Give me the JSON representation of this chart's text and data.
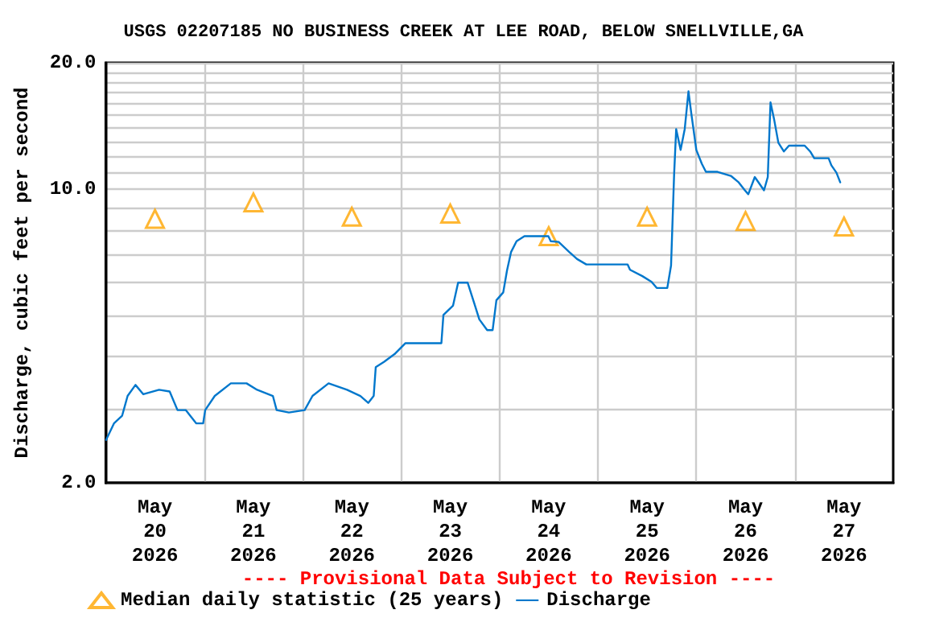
{
  "chart_data": {
    "type": "line",
    "title": "USGS 02207185 NO BUSINESS CREEK AT LEE ROAD, BELOW SNELLVILLE,GA",
    "ylabel": "Discharge, cubic feet per second",
    "annotations": [
      "---- Provisional Data Subject to Revision ----"
    ],
    "log": "y",
    "grid": true,
    "legend": "bottom",
    "xlim": [
      "2026-05-20T00:00",
      "2026-05-28T00:00"
    ],
    "xticks": [
      {
        "value": "2026-05-20T12:00",
        "label": "May\n20\n2026"
      },
      {
        "value": "2026-05-21T00:00",
        "label": null
      },
      {
        "value": "2026-05-21T12:00",
        "label": "May\n21\n2026"
      },
      {
        "value": "2026-05-22T00:00",
        "label": null
      },
      {
        "value": "2026-05-22T12:00",
        "label": "May\n22\n2026"
      },
      {
        "value": "2026-05-23T00:00",
        "label": null
      },
      {
        "value": "2026-05-23T12:00",
        "label": "May\n23\n2026"
      },
      {
        "value": "2026-05-24T00:00",
        "label": null
      },
      {
        "value": "2026-05-24T12:00",
        "label": "May\n24\n2026"
      },
      {
        "value": "2026-05-25T00:00",
        "label": null
      },
      {
        "value": "2026-05-25T12:00",
        "label": "May\n25\n2026"
      },
      {
        "value": "2026-05-26T00:00",
        "label": null
      },
      {
        "value": "2026-05-26T12:00",
        "label": "May\n26\n2026"
      },
      {
        "value": "2026-05-27T00:00",
        "label": null
      },
      {
        "value": "2026-05-27T12:00",
        "label": "May\n27\n2026"
      }
    ],
    "ylim": [
      2,
      20
    ],
    "yticks": [
      {
        "value": 2,
        "label": "2.0"
      },
      {
        "value": 3,
        "label": null
      },
      {
        "value": 4,
        "label": null
      },
      {
        "value": 5,
        "label": null
      },
      {
        "value": 6,
        "label": null
      },
      {
        "value": 7,
        "label": null
      },
      {
        "value": 8,
        "label": null
      },
      {
        "value": 9,
        "label": null
      },
      {
        "value": 10,
        "label": "10.0"
      },
      {
        "value": 11,
        "label": null
      },
      {
        "value": 12,
        "label": null
      },
      {
        "value": 13,
        "label": null
      },
      {
        "value": 14,
        "label": null
      },
      {
        "value": 15,
        "label": null
      },
      {
        "value": 16,
        "label": null
      },
      {
        "value": 17,
        "label": null
      },
      {
        "value": 18,
        "label": null
      },
      {
        "value": 19,
        "label": null
      },
      {
        "value": 20,
        "label": "20.0"
      }
    ],
    "series": [
      {
        "name": "Median daily statistic (25 years)",
        "type": "scatter",
        "marker": "triangle",
        "color": "#ffa500",
        "x": [
          "2026-05-20T12:00",
          "2026-05-21T12:00",
          "2026-05-22T12:00",
          "2026-05-23T12:00",
          "2026-05-24T12:00",
          "2026-05-25T12:00",
          "2026-05-26T12:00",
          "2026-05-27T12:00"
        ],
        "values": [
          8.5,
          9.3,
          8.6,
          8.75,
          7.73,
          8.6,
          8.4,
          8.15
        ]
      },
      {
        "name": "Discharge",
        "marker": "none",
        "line_style": "solid",
        "color": "#0077cc",
        "x": [
          "2026-05-20T00:05",
          "2026-05-20T02:00",
          "2026-05-20T04:00",
          "2026-05-20T05:20",
          "2026-05-20T07:15",
          "2026-05-20T09:10",
          "2026-05-20T13:00",
          "2026-05-20T15:35",
          "2026-05-20T17:30",
          "2026-05-20T19:30",
          "2026-05-20T22:05",
          "2026-05-20T23:45",
          "2026-05-21T00:15",
          "2026-05-21T02:35",
          "2026-05-21T06:30",
          "2026-05-21T10:20",
          "2026-05-21T12:55",
          "2026-05-21T16:45",
          "2026-05-21T17:40",
          "2026-05-21T20:40",
          "2026-05-22T00:30",
          "2026-05-22T02:25",
          "2026-05-22T06:20",
          "2026-05-22T10:50",
          "2026-05-22T14:05",
          "2026-05-22T16:00",
          "2026-05-22T17:20",
          "2026-05-22T17:50",
          "2026-05-22T19:50",
          "2026-05-22T22:25",
          "2026-05-23T01:05",
          "2026-05-23T09:50",
          "2026-05-23T10:20",
          "2026-05-23T12:40",
          "2026-05-23T13:55",
          "2026-05-23T16:15",
          "2026-05-23T17:50",
          "2026-05-23T19:05",
          "2026-05-23T21:00",
          "2026-05-23T22:20",
          "2026-05-23T23:15",
          "2026-05-24T00:55",
          "2026-05-24T01:50",
          "2026-05-24T02:50",
          "2026-05-24T04:10",
          "2026-05-24T06:05",
          "2026-05-24T11:55",
          "2026-05-24T12:30",
          "2026-05-24T14:25",
          "2026-05-24T17:00",
          "2026-05-24T18:55",
          "2026-05-24T21:10",
          "2026-05-25T07:15",
          "2026-05-25T07:50",
          "2026-05-25T10:50",
          "2026-05-25T13:05",
          "2026-05-25T14:20",
          "2026-05-25T16:55",
          "2026-05-25T17:50",
          "2026-05-25T18:35",
          "2026-05-25T19:05",
          "2026-05-25T20:10",
          "2026-05-25T21:10",
          "2026-05-25T22:05",
          "2026-05-25T22:45",
          "2026-05-26T00:00",
          "2026-05-26T01:20",
          "2026-05-26T02:20",
          "2026-05-26T05:10",
          "2026-05-26T08:25",
          "2026-05-26T10:20",
          "2026-05-26T11:50",
          "2026-05-26T12:40",
          "2026-05-26T14:15",
          "2026-05-26T16:30",
          "2026-05-26T17:25",
          "2026-05-26T18:05",
          "2026-05-26T19:00",
          "2026-05-26T20:00",
          "2026-05-26T21:20",
          "2026-05-26T22:35",
          "2026-05-27T02:25",
          "2026-05-27T03:45",
          "2026-05-27T04:45",
          "2026-05-27T08:15",
          "2026-05-27T08:55",
          "2026-05-27T10:10",
          "2026-05-27T11:05"
        ],
        "values": [
          2.53,
          2.77,
          2.89,
          3.22,
          3.42,
          3.25,
          3.33,
          3.3,
          2.98,
          2.98,
          2.77,
          2.77,
          2.98,
          3.22,
          3.45,
          3.45,
          3.33,
          3.22,
          2.98,
          2.94,
          2.98,
          3.22,
          3.45,
          3.33,
          3.22,
          3.1,
          3.22,
          3.77,
          3.88,
          4.05,
          4.3,
          4.3,
          5.02,
          5.28,
          5.99,
          5.99,
          5.36,
          4.9,
          4.62,
          4.62,
          5.44,
          5.68,
          6.4,
          7.09,
          7.52,
          7.73,
          7.73,
          7.52,
          7.49,
          7.09,
          6.82,
          6.62,
          6.62,
          6.43,
          6.21,
          6.02,
          5.82,
          5.82,
          6.58,
          10.85,
          13.9,
          12.4,
          13.9,
          17.1,
          15.2,
          12.4,
          11.5,
          11.0,
          11.0,
          10.76,
          10.38,
          9.94,
          9.73,
          10.69,
          9.94,
          10.69,
          16.1,
          14.6,
          12.9,
          12.3,
          12.7,
          12.7,
          12.3,
          11.85,
          11.85,
          11.4,
          10.95,
          10.38
        ]
      }
    ]
  }
}
